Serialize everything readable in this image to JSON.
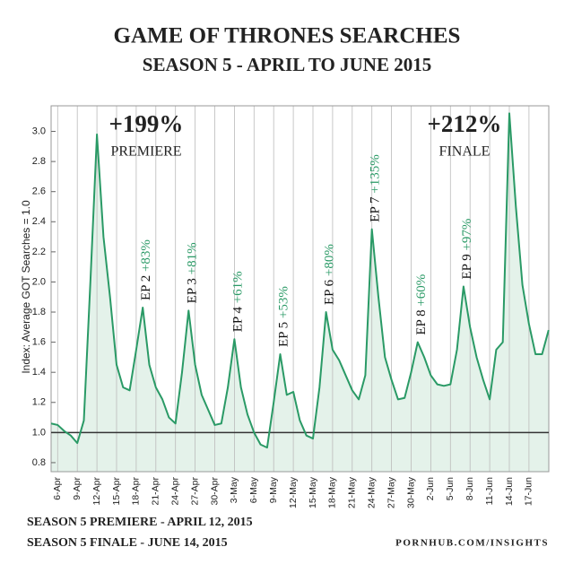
{
  "chart_data": {
    "type": "line",
    "title": "GAME OF THRONES SEARCHES",
    "subtitle": "SEASON 5 - APRIL TO JUNE 2015",
    "y_label": "Index: Average GOT Searches = 1.0",
    "categories": [
      null,
      "6-Apr",
      null,
      null,
      "9-Apr",
      null,
      null,
      "12-Apr",
      null,
      null,
      "15-Apr",
      null,
      null,
      "18-Apr",
      null,
      null,
      "21-Apr",
      null,
      null,
      "24-Apr",
      null,
      null,
      "27-Apr",
      null,
      null,
      "30-Apr",
      null,
      null,
      "3-May",
      null,
      null,
      "6-May",
      null,
      null,
      "9-May",
      null,
      null,
      "12-May",
      null,
      null,
      "15-May",
      null,
      null,
      "18-May",
      null,
      null,
      "21-May",
      null,
      null,
      "24-May",
      null,
      null,
      "27-May",
      null,
      null,
      "30-May",
      null,
      null,
      "2-Jun",
      null,
      null,
      "5-Jun",
      null,
      null,
      "8-Jun",
      null,
      null,
      "11-Jun",
      null,
      null,
      "14-Jun",
      null,
      null,
      "17-Jun",
      null,
      null,
      null
    ],
    "series": [
      {
        "name": "Searches",
        "color": "#2a9a66",
        "values": [
          1.06,
          1.05,
          1.01,
          0.98,
          0.93,
          1.08,
          2.0,
          2.98,
          2.3,
          1.9,
          1.45,
          1.3,
          1.28,
          1.55,
          1.83,
          1.45,
          1.3,
          1.22,
          1.1,
          1.06,
          1.4,
          1.81,
          1.45,
          1.25,
          1.15,
          1.05,
          1.06,
          1.3,
          1.62,
          1.3,
          1.12,
          1.0,
          0.92,
          0.9,
          1.2,
          1.52,
          1.25,
          1.27,
          1.08,
          0.98,
          0.96,
          1.3,
          1.8,
          1.55,
          1.48,
          1.38,
          1.28,
          1.22,
          1.38,
          2.35,
          1.9,
          1.5,
          1.35,
          1.22,
          1.23,
          1.4,
          1.6,
          1.5,
          1.38,
          1.32,
          1.31,
          1.32,
          1.55,
          1.97,
          1.7,
          1.5,
          1.35,
          1.22,
          1.55,
          1.6,
          3.12,
          2.5,
          1.98,
          1.72,
          1.52,
          1.52,
          1.68
        ]
      }
    ],
    "area_color": "#e4f2ea",
    "ylim": [
      0.74,
      3.17
    ],
    "yticks": [
      {
        "value": 0.8,
        "label": "0.8"
      },
      {
        "value": 1,
        "label": "1.0"
      },
      {
        "value": 1.2,
        "label": "1.2"
      },
      {
        "value": 1.4,
        "label": "1.4"
      },
      {
        "value": 1.6,
        "label": "1.6"
      },
      {
        "value": 1.8,
        "label": "1.8"
      },
      {
        "value": 2,
        "label": "2.0"
      },
      {
        "value": 2.2,
        "label": "2.2"
      },
      {
        "value": 2.4,
        "label": "2.4"
      },
      {
        "value": 2.6,
        "label": "2.6"
      },
      {
        "value": 2.8,
        "label": "2.8"
      },
      {
        "value": 3,
        "label": "3.0"
      }
    ],
    "baseline": 1,
    "grid": true,
    "premiere": {
      "change": "+199%",
      "label": "PREMIERE"
    },
    "finale": {
      "change": "+212%",
      "label": "FINALE"
    },
    "episodes": [
      {
        "label": "EP 2",
        "change": "+83%"
      },
      {
        "label": "EP 3",
        "change": "+81%"
      },
      {
        "label": "EP 4",
        "change": "+61%"
      },
      {
        "label": "EP 5",
        "change": "+53%"
      },
      {
        "label": "EP 6",
        "change": "+80%"
      },
      {
        "label": "EP 7",
        "change": "+135%"
      },
      {
        "label": "EP 8",
        "change": "+60%"
      },
      {
        "label": "EP 9",
        "change": "+97%"
      }
    ],
    "footer": [
      "SEASON 5 PREMIERE  -  APRIL 12, 2015",
      "SEASON 5 FINALE  -  JUNE 14, 2015"
    ],
    "source": "PORNHUB.COM/INSIGHTS"
  }
}
